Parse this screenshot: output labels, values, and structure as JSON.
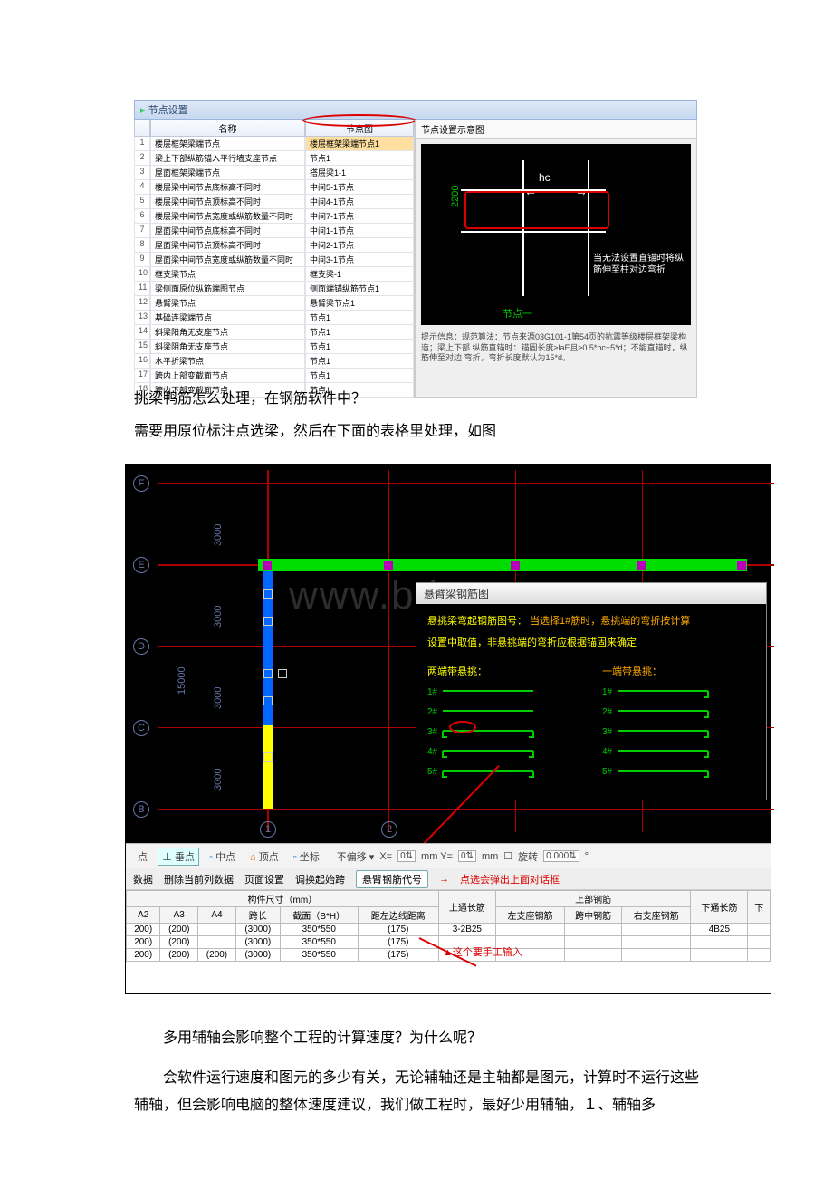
{
  "shot1": {
    "title": "节点设置",
    "th_name": "名称",
    "th_node": "节点图",
    "rows": [
      {
        "n": "1",
        "name": "楼层框架梁端节点",
        "node": "楼层框架梁端节点1",
        "hl": true
      },
      {
        "n": "2",
        "name": "梁上下部纵筋锚入平行墙支座节点",
        "node": "节点1"
      },
      {
        "n": "3",
        "name": "屋面框架梁端节点",
        "node": "搭层梁1-1"
      },
      {
        "n": "4",
        "name": "楼层梁中间节点底标高不同时",
        "node": "中间5-1节点"
      },
      {
        "n": "5",
        "name": "楼层梁中间节点顶标高不同时",
        "node": "中间4-1节点"
      },
      {
        "n": "6",
        "name": "楼层梁中间节点宽度或纵筋数量不同时",
        "node": "中间7-1节点"
      },
      {
        "n": "7",
        "name": "屋面梁中间节点底标高不同时",
        "node": "中间1-1节点"
      },
      {
        "n": "8",
        "name": "屋面梁中间节点顶标高不同时",
        "node": "中间2-1节点"
      },
      {
        "n": "9",
        "name": "屋面梁中间节点宽度或纵筋数量不同时",
        "node": "中间3-1节点"
      },
      {
        "n": "10",
        "name": "框支梁节点",
        "node": "框支梁-1"
      },
      {
        "n": "11",
        "name": "梁侧面原位纵筋端图节点",
        "node": "侧面端锚纵筋节点1"
      },
      {
        "n": "12",
        "name": "悬臂梁节点",
        "node": "悬臂梁节点1"
      },
      {
        "n": "13",
        "name": "基础连梁端节点",
        "node": "节点1"
      },
      {
        "n": "14",
        "name": "斜梁阳角无支座节点",
        "node": "节点1"
      },
      {
        "n": "15",
        "name": "斜梁阴角无支座节点",
        "node": "节点1"
      },
      {
        "n": "16",
        "name": "水平折梁节点",
        "node": "节点1"
      },
      {
        "n": "17",
        "name": "跨内上部变截面节点",
        "node": "节点1"
      },
      {
        "n": "18",
        "name": "跨内下部变截面节点",
        "node": "节点1"
      }
    ],
    "panel_tab": "节点设置示意图",
    "d1_hc": "hc",
    "d1_2200": "2200",
    "d1_text": "当无法设置直锚时将纵筋伸至柱对边弯折",
    "d1_label": "节点一",
    "hint": "提示信息：规范算法：节点来源03G101-1第54页的抗震等级楼层框架梁构造；梁上下部 纵筋直锚时：锚固长度≥laE且≥0.5*hc+5*d；不能直锚时，纵筋伸至对边 弯折，弯折长度默认为15*d。"
  },
  "para1": "挑梁鸭筋怎么处理，在钢筋软件中？",
  "para2": "需要用原位标注点选梁，然后在下面的表格里处理，如图",
  "shot2": {
    "watermark": "www.bdocx.com",
    "axes_v": [
      "F",
      "E",
      "D",
      "C",
      "B"
    ],
    "axes_h": [
      "1",
      "2"
    ],
    "dim3000": "3000",
    "dim15000": "15000",
    "popup_title": "悬臂梁钢筋图",
    "popup_l1a": "悬挑梁弯起钢筋图号：",
    "popup_l1b": "当选择1#筋时，悬挑端的弯折按计算",
    "popup_l2": "设置中取值，非悬挑端的弯折应根据锚固来确定",
    "col_both": "两端带悬挑：",
    "col_one": "一端带悬挑：",
    "rows_num": [
      "1#",
      "2#",
      "3#",
      "4#",
      "5#"
    ],
    "snap": {
      "a": "点",
      "b": "⊥ 垂点",
      "c": "中点",
      "d": "顶点",
      "e": "坐标",
      "f": "不偏移",
      "g": "X=",
      "h": "0",
      "i": "mm Y=",
      "j": "0",
      "k": "mm",
      "l": "旋转",
      "m": "0.000",
      "n": "°"
    },
    "tb": {
      "a": "数据",
      "b": "删除当前列数据",
      "c": "页面设置",
      "d": "调换起始跨",
      "e": "悬臂钢筋代号",
      "note1": "点选会弹出上面对话框",
      "note2": "▲这个要手工输入"
    },
    "table": {
      "h_size": "构件尺寸（mm）",
      "h_top": "上部钢筋",
      "h_bot": "下",
      "c1": "A2",
      "c2": "A3",
      "c3": "A4",
      "c4": "跨长",
      "c5": "截面（B*H）",
      "c6": "距左边线距离",
      "c7": "上通长筋",
      "c8": "左支座钢筋",
      "c9": "跨中钢筋",
      "c10": "右支座钢筋",
      "c11": "下通长筋",
      "r1": [
        "200)",
        "(200)",
        "",
        "(3000)",
        "350*550",
        "(175)",
        "3-2B25",
        "",
        "",
        "",
        "4B25"
      ],
      "r2": [
        "200)",
        "(200)",
        "",
        "(3000)",
        "350*550",
        "(175)",
        "",
        "",
        "",
        "",
        ""
      ],
      "r3": [
        "200)",
        "(200)",
        "(200)",
        "(3000)",
        "350*550",
        "(175)",
        "",
        "",
        "",
        "",
        ""
      ]
    }
  },
  "para3": "多用辅轴会影响整个工程的计算速度？为什么呢？",
  "para4": "会软件运行速度和图元的多少有关，无论辅轴还是主轴都是图元，计算时不运行这些辅轴，但会影响电脑的整体速度建议，我们做工程时，最好少用辅轴，１、辅轴多"
}
